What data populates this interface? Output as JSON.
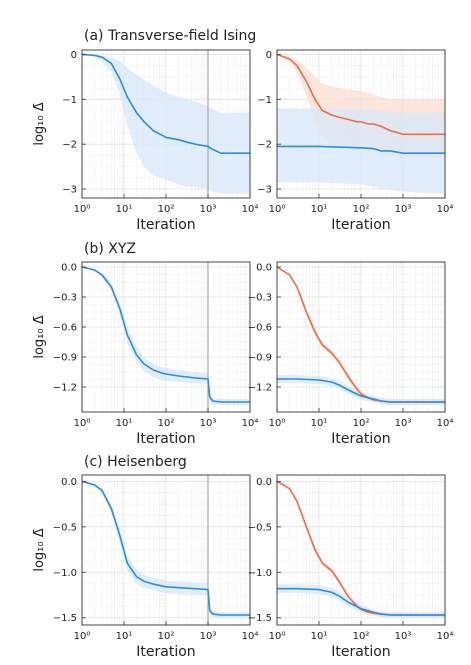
{
  "figure": {
    "rows": [
      {
        "title": "(a) Transverse-field Ising"
      },
      {
        "title": "(b) XYZ"
      },
      {
        "title": "(c) Heisenberg"
      }
    ],
    "ylabel": "log₁₀ Δ̄",
    "xlabel": "Iteration",
    "colors": {
      "blue": "#2a8fd8",
      "orange": "#ee6c45",
      "blue_band": "#d8e7fa",
      "orange_band": "#fbddd2",
      "vline": "#a8a8a8"
    }
  },
  "chart_data": [
    {
      "id": "a-left",
      "type": "line",
      "xscale": "log",
      "xlim": [
        1,
        10000
      ],
      "ylim": [
        -3.2,
        0.1
      ],
      "xticks": [
        1,
        10,
        100,
        1000,
        10000
      ],
      "xticklabels": [
        "10⁰",
        "10¹",
        "10²",
        "10³",
        "10⁴"
      ],
      "yticks": [
        0,
        -1,
        -2,
        -3
      ],
      "yticklabels": [
        "0",
        "−1",
        "−2",
        "−3"
      ],
      "vline": 1000,
      "grid": true,
      "xlabel": "Iteration",
      "ylabel": "log₁₀ Δ̄",
      "series": [
        {
          "color": "blue",
          "x": [
            1,
            2,
            3,
            5,
            8,
            12,
            20,
            30,
            50,
            80,
            100,
            150,
            200,
            300,
            500,
            1000,
            1200,
            2000,
            5000,
            10000
          ],
          "y": [
            0,
            -0.02,
            -0.06,
            -0.2,
            -0.55,
            -0.95,
            -1.3,
            -1.5,
            -1.7,
            -1.8,
            -1.85,
            -1.88,
            -1.9,
            -1.95,
            -2.0,
            -2.05,
            -2.1,
            -2.2,
            -2.2,
            -2.2
          ],
          "band_upper": [
            0,
            -0.01,
            -0.02,
            -0.06,
            -0.15,
            -0.3,
            -0.45,
            -0.55,
            -0.7,
            -0.8,
            -0.85,
            -0.9,
            -0.95,
            -1.0,
            -1.05,
            -1.15,
            -1.2,
            -1.3,
            -1.3,
            -1.3
          ],
          "band_lower": [
            0,
            -0.05,
            -0.15,
            -0.4,
            -0.9,
            -1.6,
            -2.2,
            -2.5,
            -2.7,
            -2.75,
            -2.8,
            -2.85,
            -2.9,
            -2.95,
            -2.95,
            -3.0,
            -3.05,
            -3.1,
            -3.1,
            -3.1
          ]
        }
      ]
    },
    {
      "id": "a-right",
      "type": "line",
      "xscale": "log",
      "xlim": [
        1,
        10000
      ],
      "ylim": [
        -3.2,
        0.1
      ],
      "xticks": [
        1,
        10,
        100,
        1000,
        10000
      ],
      "xticklabels": [
        "10⁰",
        "10¹",
        "10²",
        "10³",
        "10⁴"
      ],
      "yticks": [
        0,
        -1,
        -2,
        -3
      ],
      "yticklabels": [
        "0",
        "−1",
        "−2",
        "−3"
      ],
      "grid": true,
      "xlabel": "Iteration",
      "series": [
        {
          "color": "orange",
          "x": [
            1,
            2,
            3,
            5,
            8,
            12,
            20,
            30,
            50,
            80,
            100,
            150,
            200,
            300,
            500,
            800,
            1000,
            2000,
            10000
          ],
          "y": [
            0,
            -0.1,
            -0.25,
            -0.6,
            -1.0,
            -1.25,
            -1.35,
            -1.4,
            -1.45,
            -1.5,
            -1.5,
            -1.55,
            -1.55,
            -1.6,
            -1.7,
            -1.75,
            -1.78,
            -1.78,
            -1.78
          ],
          "band_upper": [
            0,
            -0.05,
            -0.12,
            -0.3,
            -0.5,
            -0.65,
            -0.72,
            -0.75,
            -0.78,
            -0.8,
            -0.82,
            -0.85,
            -0.9,
            -0.95,
            -1.0,
            -1.0,
            -1.0,
            -1.0,
            -1.0
          ],
          "band_lower": [
            0,
            -0.15,
            -0.4,
            -0.9,
            -1.5,
            -1.85,
            -1.98,
            -2.02,
            -2.05,
            -2.08,
            -2.1,
            -2.12,
            -2.15,
            -2.2,
            -2.25,
            -2.3,
            -2.3,
            -2.3,
            -2.3
          ]
        },
        {
          "color": "blue",
          "x": [
            1,
            10,
            100,
            200,
            300,
            500,
            1000,
            2000,
            10000
          ],
          "y": [
            -2.05,
            -2.05,
            -2.08,
            -2.1,
            -2.15,
            -2.15,
            -2.2,
            -2.2,
            -2.2
          ],
          "band_upper": [
            -1.2,
            -1.2,
            -1.22,
            -1.24,
            -1.26,
            -1.28,
            -1.3,
            -1.3,
            -1.3
          ],
          "band_lower": [
            -2.85,
            -2.85,
            -2.9,
            -2.95,
            -3.0,
            -3.02,
            -3.05,
            -3.08,
            -3.1
          ]
        }
      ]
    },
    {
      "id": "b-left",
      "type": "line",
      "xscale": "log",
      "xlim": [
        1,
        10000
      ],
      "ylim": [
        -1.45,
        0.05
      ],
      "xticks": [
        1,
        10,
        100,
        1000,
        10000
      ],
      "xticklabels": [
        "10⁰",
        "10¹",
        "10²",
        "10³",
        "10⁴"
      ],
      "yticks": [
        0,
        -0.3,
        -0.6,
        -0.9,
        -1.2
      ],
      "yticklabels": [
        "0.0",
        "−0.3",
        "−0.6",
        "−0.9",
        "−1.2"
      ],
      "vline": 1000,
      "grid": true,
      "xlabel": "Iteration",
      "ylabel": "log₁₀ Δ̄",
      "series": [
        {
          "color": "blue",
          "x": [
            1,
            2,
            3,
            5,
            8,
            12,
            20,
            30,
            50,
            80,
            100,
            200,
            500,
            1000,
            1100,
            1300,
            2000,
            10000
          ],
          "y": [
            0,
            -0.03,
            -0.08,
            -0.2,
            -0.42,
            -0.68,
            -0.88,
            -0.97,
            -1.03,
            -1.06,
            -1.07,
            -1.09,
            -1.11,
            -1.12,
            -1.3,
            -1.34,
            -1.35,
            -1.35
          ],
          "band_upper": [
            0,
            -0.02,
            -0.06,
            -0.16,
            -0.36,
            -0.6,
            -0.8,
            -0.9,
            -0.97,
            -1.0,
            -1.01,
            -1.03,
            -1.05,
            -1.06,
            -1.26,
            -1.31,
            -1.32,
            -1.32
          ],
          "band_lower": [
            0,
            -0.04,
            -0.1,
            -0.24,
            -0.48,
            -0.76,
            -0.96,
            -1.04,
            -1.1,
            -1.13,
            -1.14,
            -1.15,
            -1.16,
            -1.17,
            -1.34,
            -1.37,
            -1.38,
            -1.38
          ]
        }
      ]
    },
    {
      "id": "b-right",
      "type": "line",
      "xscale": "log",
      "xlim": [
        1,
        10000
      ],
      "ylim": [
        -1.45,
        0.05
      ],
      "xticks": [
        1,
        10,
        100,
        1000,
        10000
      ],
      "xticklabels": [
        "10⁰",
        "10¹",
        "10²",
        "10³",
        "10⁴"
      ],
      "yticks": [
        0,
        -0.3,
        -0.6,
        -0.9,
        -1.2
      ],
      "yticklabels": [
        "0.0",
        "−0.3",
        "−0.6",
        "−0.9",
        "−1.2"
      ],
      "grid": true,
      "xlabel": "Iteration",
      "series": [
        {
          "color": "orange",
          "x": [
            1,
            2,
            3,
            5,
            8,
            12,
            20,
            30,
            50,
            80,
            100,
            150,
            200,
            300,
            500,
            1000,
            10000
          ],
          "y": [
            0,
            -0.08,
            -0.2,
            -0.45,
            -0.65,
            -0.78,
            -0.86,
            -0.95,
            -1.1,
            -1.22,
            -1.27,
            -1.31,
            -1.33,
            -1.34,
            -1.35,
            -1.35,
            -1.35
          ],
          "band_upper": [
            0,
            -0.07,
            -0.18,
            -0.42,
            -0.62,
            -0.75,
            -0.83,
            -0.92,
            -1.07,
            -1.19,
            -1.24,
            -1.28,
            -1.3,
            -1.31,
            -1.32,
            -1.32,
            -1.32
          ],
          "band_lower": [
            0,
            -0.09,
            -0.22,
            -0.48,
            -0.68,
            -0.81,
            -0.89,
            -0.98,
            -1.13,
            -1.25,
            -1.3,
            -1.34,
            -1.36,
            -1.37,
            -1.38,
            -1.38,
            -1.38
          ]
        },
        {
          "color": "blue",
          "x": [
            1,
            3,
            10,
            20,
            30,
            50,
            100,
            200,
            300,
            500,
            1000,
            10000
          ],
          "y": [
            -1.12,
            -1.12,
            -1.13,
            -1.15,
            -1.18,
            -1.23,
            -1.29,
            -1.32,
            -1.34,
            -1.35,
            -1.35,
            -1.35
          ],
          "band_upper": [
            -1.08,
            -1.08,
            -1.09,
            -1.11,
            -1.14,
            -1.19,
            -1.25,
            -1.29,
            -1.31,
            -1.32,
            -1.32,
            -1.32
          ],
          "band_lower": [
            -1.16,
            -1.16,
            -1.17,
            -1.19,
            -1.22,
            -1.27,
            -1.33,
            -1.35,
            -1.37,
            -1.38,
            -1.38,
            -1.38
          ]
        }
      ]
    },
    {
      "id": "c-left",
      "type": "line",
      "xscale": "log",
      "xlim": [
        1,
        10000
      ],
      "ylim": [
        -1.58,
        0.07
      ],
      "xticks": [
        1,
        10,
        100,
        1000,
        10000
      ],
      "xticklabels": [
        "10⁰",
        "10¹",
        "10²",
        "10³",
        "10⁴"
      ],
      "yticks": [
        0,
        -0.5,
        -1.0,
        -1.5
      ],
      "yticklabels": [
        "0.0",
        "−0.5",
        "−1.0",
        "−1.5"
      ],
      "vline": 1000,
      "grid": true,
      "xlabel": "Iteration",
      "ylabel": "log₁₀ Δ̄",
      "series": [
        {
          "color": "blue",
          "x": [
            1,
            2,
            3,
            5,
            8,
            12,
            20,
            30,
            50,
            80,
            100,
            200,
            500,
            1000,
            1100,
            1300,
            2000,
            10000
          ],
          "y": [
            0,
            -0.04,
            -0.1,
            -0.3,
            -0.6,
            -0.9,
            -1.05,
            -1.1,
            -1.13,
            -1.15,
            -1.16,
            -1.17,
            -1.18,
            -1.19,
            -1.42,
            -1.46,
            -1.47,
            -1.47
          ],
          "band_upper": [
            0,
            -0.03,
            -0.08,
            -0.25,
            -0.52,
            -0.82,
            -0.97,
            -1.03,
            -1.06,
            -1.08,
            -1.09,
            -1.1,
            -1.11,
            -1.12,
            -1.38,
            -1.43,
            -1.44,
            -1.44
          ],
          "band_lower": [
            0,
            -0.05,
            -0.13,
            -0.35,
            -0.68,
            -0.98,
            -1.13,
            -1.17,
            -1.2,
            -1.22,
            -1.23,
            -1.24,
            -1.25,
            -1.26,
            -1.46,
            -1.49,
            -1.5,
            -1.5
          ]
        }
      ]
    },
    {
      "id": "c-right",
      "type": "line",
      "xscale": "log",
      "xlim": [
        1,
        10000
      ],
      "ylim": [
        -1.58,
        0.07
      ],
      "xticks": [
        1,
        10,
        100,
        1000,
        10000
      ],
      "xticklabels": [
        "10⁰",
        "10¹",
        "10²",
        "10³",
        "10⁴"
      ],
      "yticks": [
        0,
        -0.5,
        -1.0,
        -1.5
      ],
      "yticklabels": [
        "0.0",
        "−0.5",
        "−1.0",
        "−1.5"
      ],
      "grid": true,
      "xlabel": "Iteration",
      "series": [
        {
          "color": "orange",
          "x": [
            1,
            2,
            3,
            5,
            8,
            12,
            20,
            30,
            50,
            80,
            100,
            150,
            200,
            300,
            500,
            1000,
            10000
          ],
          "y": [
            0,
            -0.08,
            -0.22,
            -0.5,
            -0.75,
            -0.9,
            -0.98,
            -1.1,
            -1.27,
            -1.37,
            -1.41,
            -1.44,
            -1.45,
            -1.46,
            -1.47,
            -1.47,
            -1.47
          ],
          "band_upper": [
            0,
            -0.07,
            -0.2,
            -0.47,
            -0.72,
            -0.87,
            -0.95,
            -1.07,
            -1.24,
            -1.34,
            -1.38,
            -1.41,
            -1.42,
            -1.43,
            -1.44,
            -1.44,
            -1.44
          ],
          "band_lower": [
            0,
            -0.09,
            -0.24,
            -0.53,
            -0.78,
            -0.93,
            -1.01,
            -1.13,
            -1.3,
            -1.4,
            -1.44,
            -1.47,
            -1.48,
            -1.49,
            -1.5,
            -1.5,
            -1.5
          ]
        },
        {
          "color": "blue",
          "x": [
            1,
            3,
            10,
            20,
            30,
            50,
            100,
            200,
            300,
            500,
            1000,
            10000
          ],
          "y": [
            -1.18,
            -1.18,
            -1.19,
            -1.22,
            -1.26,
            -1.33,
            -1.4,
            -1.44,
            -1.46,
            -1.47,
            -1.47,
            -1.47
          ],
          "band_upper": [
            -1.13,
            -1.13,
            -1.14,
            -1.17,
            -1.21,
            -1.28,
            -1.36,
            -1.41,
            -1.43,
            -1.44,
            -1.44,
            -1.44
          ],
          "band_lower": [
            -1.23,
            -1.23,
            -1.24,
            -1.27,
            -1.31,
            -1.38,
            -1.44,
            -1.47,
            -1.49,
            -1.5,
            -1.5,
            -1.5
          ]
        }
      ]
    }
  ]
}
